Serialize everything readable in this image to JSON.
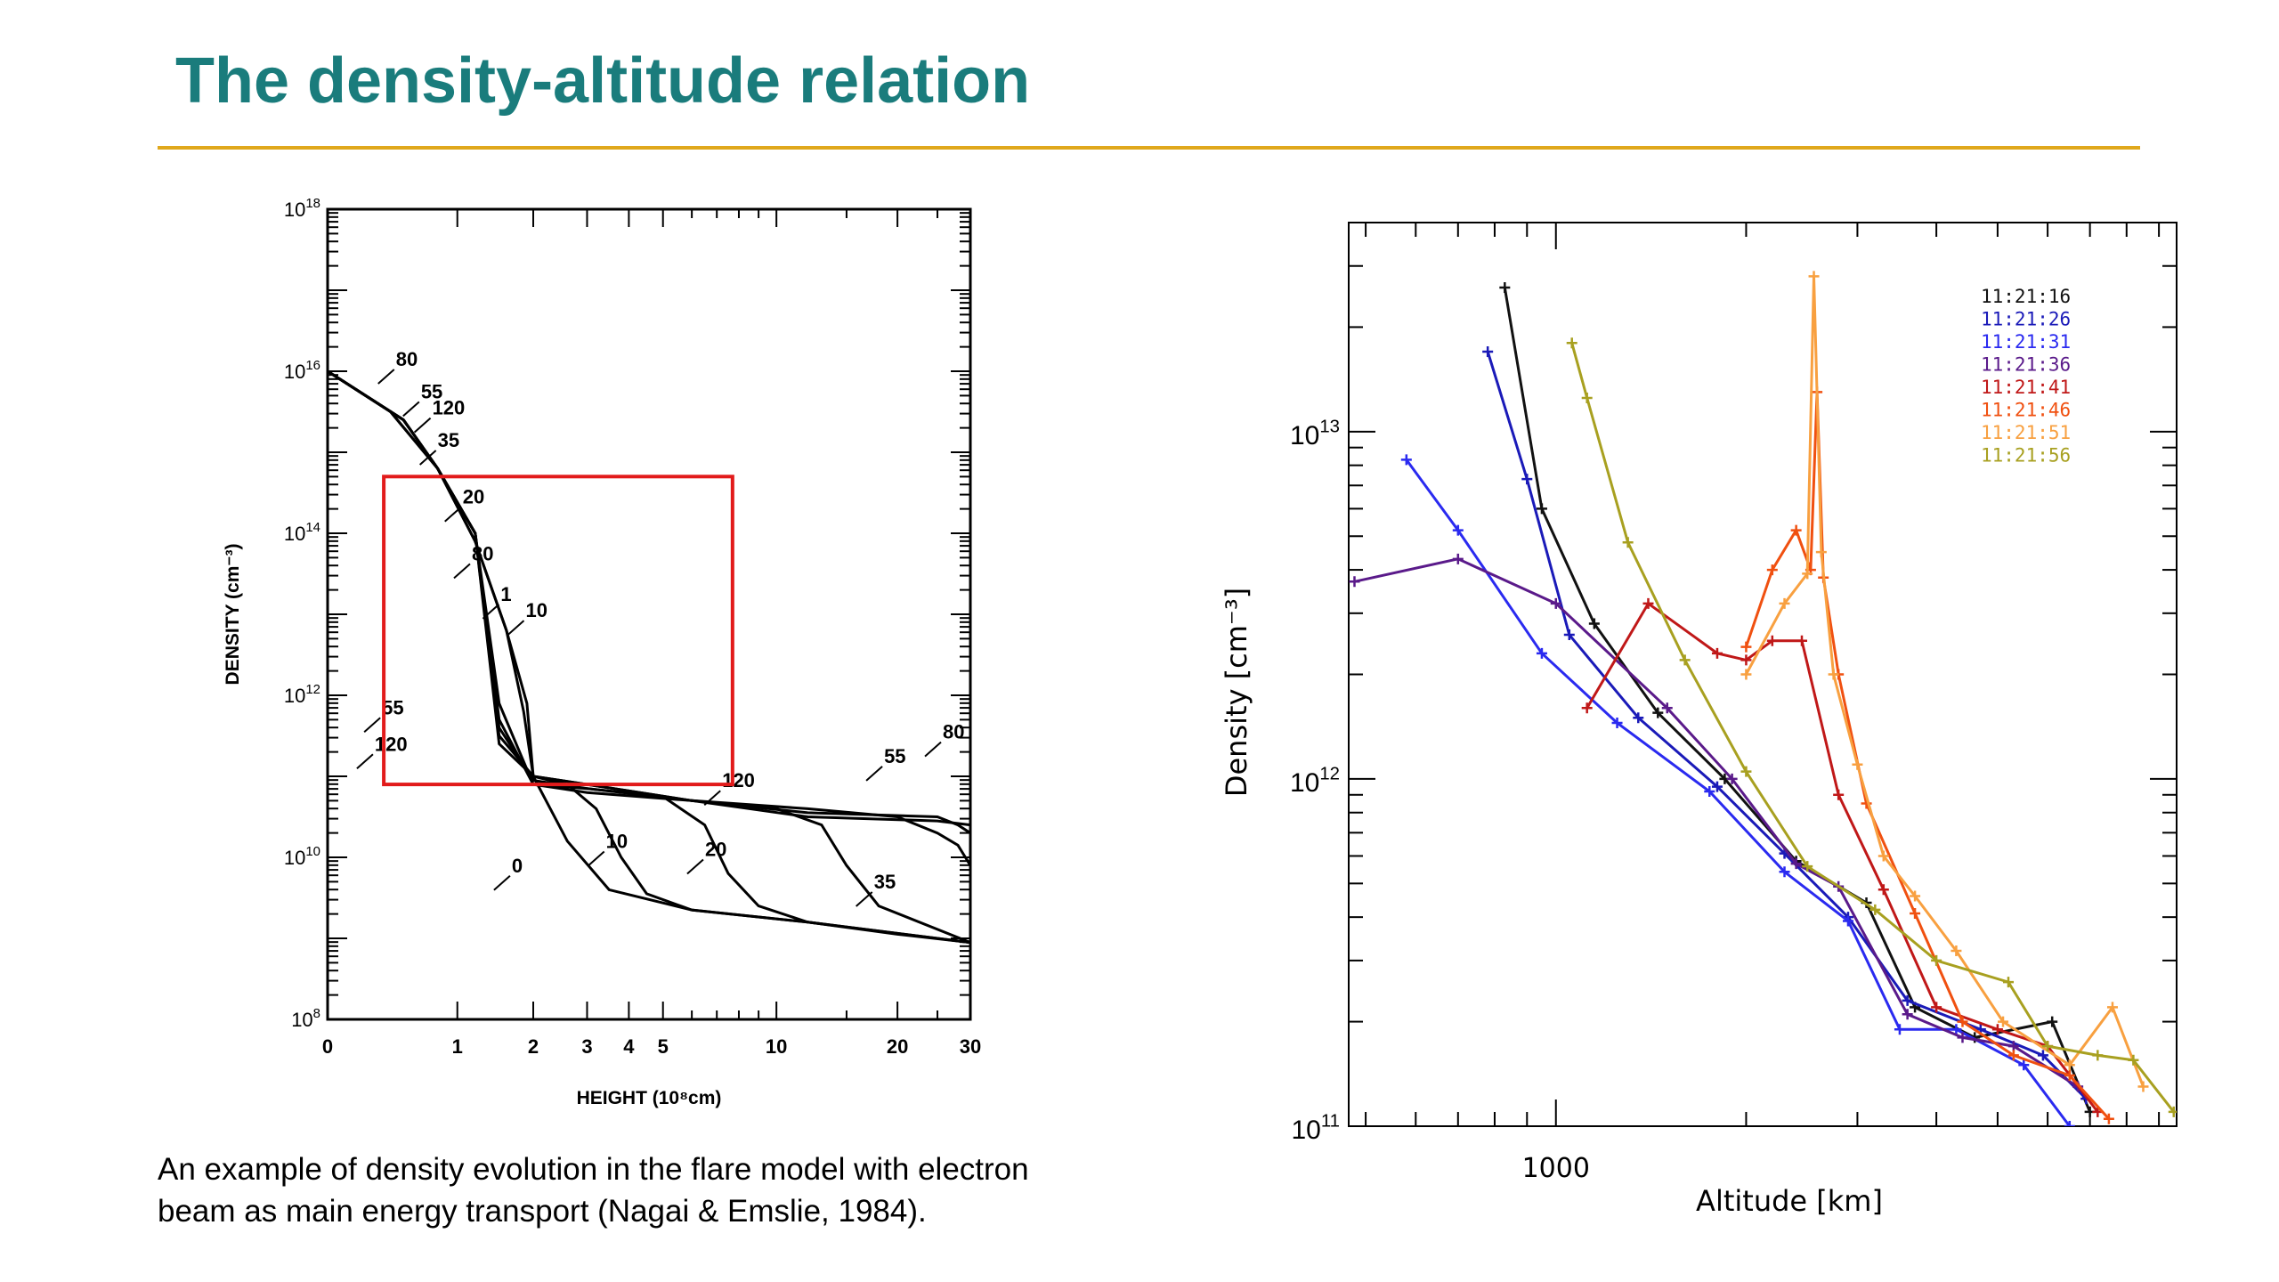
{
  "slide": {
    "title": "The density-altitude relation",
    "caption_lines": [
      "An example of density evolution in the flare model with electron",
      "beam as main energy transport (Nagai & Emslie, 1984)."
    ]
  },
  "colors": {
    "title": "#1a7c7c",
    "rule": "#e0a81c",
    "highlight_box": "#e21b1b"
  },
  "chart_data": [
    {
      "type": "line",
      "xlabel": "HEIGHT (10⁸cm)",
      "ylabel": "DENSITY (cm⁻³)",
      "x_scale": "log(1+x)",
      "y_scale": "log",
      "xlim": [
        0,
        30
      ],
      "ylim": [
        100000000.0,
        1e+18
      ],
      "x_ticks": [
        {
          "value": 0,
          "label": "0"
        },
        {
          "value": 1,
          "label": "1"
        },
        {
          "value": 2,
          "label": "2"
        },
        {
          "value": 3,
          "label": "3"
        },
        {
          "value": 4,
          "label": "4"
        },
        {
          "value": 5,
          "label": "5"
        },
        {
          "value": 10,
          "label": "10"
        },
        {
          "value": 20,
          "label": "20"
        },
        {
          "value": 30,
          "label": "30"
        }
      ],
      "y_ticks": [
        {
          "exp": 8,
          "base": "10",
          "sup": "8"
        },
        {
          "exp": 10,
          "base": "10",
          "sup": "10"
        },
        {
          "exp": 12,
          "base": "10",
          "sup": "12"
        },
        {
          "exp": 14,
          "base": "10",
          "sup": "14"
        },
        {
          "exp": 16,
          "base": "10",
          "sup": "16"
        },
        {
          "exp": 18,
          "base": "10",
          "sup": "18"
        }
      ],
      "series": [
        {
          "label": "0",
          "x": [
            0,
            0.4,
            0.8,
            1.2,
            1.6,
            1.85,
            2.0,
            2.6,
            3.5,
            6,
            12,
            20,
            30
          ],
          "logy": [
            16.0,
            15.5,
            14.8,
            13.9,
            12.8,
            11.8,
            11.0,
            10.2,
            9.6,
            9.35,
            9.2,
            9.05,
            8.95
          ]
        },
        {
          "label": "10",
          "x": [
            0,
            0.4,
            0.8,
            1.2,
            1.6,
            1.9,
            2.0,
            2.6,
            3.2,
            3.8,
            4.5,
            6,
            12,
            30
          ],
          "logy": [
            16.0,
            15.5,
            14.8,
            13.9,
            12.8,
            11.9,
            11.0,
            10.9,
            10.6,
            10.0,
            9.55,
            9.35,
            9.2,
            8.95
          ]
        },
        {
          "label": "20",
          "x": [
            0,
            0.5,
            0.8,
            1.2,
            1.5,
            2.0,
            3.0,
            5.0,
            6.5,
            7.5,
            9,
            12,
            30
          ],
          "logy": [
            16.0,
            15.4,
            14.8,
            14.0,
            11.9,
            10.9,
            10.85,
            10.75,
            10.4,
            9.8,
            9.4,
            9.2,
            8.95
          ]
        },
        {
          "label": "35",
          "x": [
            0,
            0.5,
            0.8,
            1.2,
            1.5,
            2.0,
            3.0,
            6,
            10,
            13,
            15,
            18,
            30
          ],
          "logy": [
            16.0,
            15.4,
            14.8,
            14.0,
            11.7,
            10.9,
            10.8,
            10.7,
            10.6,
            10.4,
            9.9,
            9.4,
            8.95
          ]
        },
        {
          "label": "55",
          "x": [
            0,
            0.5,
            0.8,
            1.2,
            1.5,
            2.0,
            3.0,
            6,
            12,
            20,
            25,
            28,
            30
          ],
          "logy": [
            16.0,
            15.4,
            14.8,
            14.0,
            11.6,
            10.95,
            10.85,
            10.7,
            10.6,
            10.5,
            10.3,
            10.15,
            9.9
          ]
        },
        {
          "label": "80",
          "x": [
            0,
            0.5,
            0.8,
            1.2,
            1.5,
            2.0,
            3.0,
            6,
            12,
            25,
            28,
            30
          ],
          "logy": [
            16.0,
            15.4,
            14.8,
            14.0,
            11.5,
            11.0,
            10.9,
            10.7,
            10.55,
            10.5,
            10.4,
            10.3
          ]
        },
        {
          "label": "120",
          "x": [
            0,
            0.5,
            0.8,
            1.2,
            1.5,
            2.0,
            3.0,
            6,
            12,
            25,
            30
          ],
          "logy": [
            16.0,
            15.4,
            14.8,
            14.0,
            11.4,
            11.0,
            10.9,
            10.7,
            10.5,
            10.45,
            10.4
          ]
        }
      ],
      "annotations": [
        {
          "text": "80",
          "x": 0.4,
          "logy": 16.0
        },
        {
          "text": "55",
          "x": 0.6,
          "logy": 15.6
        },
        {
          "text": "120",
          "x": 0.7,
          "logy": 15.4
        },
        {
          "text": "35",
          "x": 0.75,
          "logy": 15.0
        },
        {
          "text": "20",
          "x": 1.0,
          "logy": 14.3
        },
        {
          "text": "80",
          "x": 1.1,
          "logy": 13.6
        },
        {
          "text": "1",
          "x": 1.45,
          "logy": 13.1
        },
        {
          "text": "10",
          "x": 1.8,
          "logy": 12.9
        },
        {
          "text": "55",
          "x": 0.3,
          "logy": 11.7
        },
        {
          "text": "120",
          "x": 0.25,
          "logy": 11.25
        },
        {
          "text": "80",
          "x": 25,
          "logy": 11.4
        },
        {
          "text": "55",
          "x": 18,
          "logy": 11.1
        },
        {
          "text": "120",
          "x": 7,
          "logy": 10.8
        },
        {
          "text": "10",
          "x": 3.3,
          "logy": 10.05
        },
        {
          "text": "20",
          "x": 6.3,
          "logy": 9.95
        },
        {
          "text": "35",
          "x": 17,
          "logy": 9.55
        },
        {
          "text": "0",
          "x": 1.6,
          "logy": 9.75
        }
      ],
      "highlight_box": {
        "x": [
          0.35,
          7.7
        ],
        "logy": [
          10.9,
          14.7
        ]
      }
    },
    {
      "type": "line",
      "xlabel": "Altitude [km]",
      "ylabel": "Density [cm⁻³]",
      "x_scale": "log",
      "y_scale": "log",
      "xlim": [
        470,
        9600
      ],
      "ylim": [
        100000000000.0,
        40000000000000.0
      ],
      "x_ticks": [
        {
          "value": 1000,
          "label": "1000"
        }
      ],
      "y_ticks": [
        {
          "value": 100000000000.0,
          "base": "10",
          "sup": "11"
        },
        {
          "value": 1000000000000.0,
          "base": "10",
          "sup": "12"
        },
        {
          "value": 10000000000000.0,
          "base": "10",
          "sup": "13"
        }
      ],
      "legend_position": "top-right",
      "series": [
        {
          "name": "11:21:16",
          "color": "#111111",
          "x": [
            830,
            950,
            1150,
            1450,
            1850,
            2400,
            3100,
            3700,
            4600,
            6100,
            7000
          ],
          "y": [
            26000000000000.0,
            6000000000000.0,
            2800000000000.0,
            1550000000000.0,
            1000000000000.0,
            580000000000.0,
            440000000000.0,
            220000000000.0,
            180000000000.0,
            200000000000.0,
            110000000000.0
          ]
        },
        {
          "name": "11:21:26",
          "color": "#1a1ab8",
          "x": [
            780,
            900,
            1050,
            1350,
            1800,
            2300,
            2900,
            3600,
            4700,
            5900,
            6900
          ],
          "y": [
            17000000000000.0,
            7300000000000.0,
            2600000000000.0,
            1500000000000.0,
            950000000000.0,
            610000000000.0,
            400000000000.0,
            230000000000.0,
            190000000000.0,
            160000000000.0,
            120000000000.0
          ]
        },
        {
          "name": "11:21:31",
          "color": "#2a2af0",
          "x": [
            580,
            700,
            950,
            1250,
            1750,
            2300,
            2900,
            3500,
            4300,
            5500,
            6500
          ],
          "y": [
            8300000000000.0,
            5200000000000.0,
            2300000000000.0,
            1450000000000.0,
            920000000000.0,
            540000000000.0,
            390000000000.0,
            190000000000.0,
            190000000000.0,
            150000000000.0,
            100000000000.0
          ]
        },
        {
          "name": "11:21:36",
          "color": "#5a1a8a",
          "x": [
            480,
            700,
            1000,
            1500,
            1900,
            2400,
            2800,
            3600,
            4400,
            5300,
            6700
          ],
          "y": [
            3700000000000.0,
            4300000000000.0,
            3200000000000.0,
            1600000000000.0,
            1000000000000.0,
            570000000000.0,
            490000000000.0,
            210000000000.0,
            180000000000.0,
            170000000000.0,
            130000000000.0
          ]
        },
        {
          "name": "11:21:41",
          "color": "#c01818",
          "x": [
            1120,
            1400,
            1800,
            2000,
            2200,
            2450,
            2800,
            3300,
            4000,
            5000,
            6000,
            7200
          ],
          "y": [
            1600000000000.0,
            3200000000000.0,
            2300000000000.0,
            2200000000000.0,
            2500000000000.0,
            2500000000000.0,
            900000000000.0,
            480000000000.0,
            220000000000.0,
            190000000000.0,
            170000000000.0,
            110000000000.0
          ]
        },
        {
          "name": "11:21:46",
          "color": "#f05010",
          "x": [
            2000,
            2200,
            2400,
            2530,
            2590,
            2650,
            2800,
            3100,
            3700,
            4400,
            5300,
            6500,
            7500
          ],
          "y": [
            2400000000000.0,
            4000000000000.0,
            5200000000000.0,
            4000000000000.0,
            13000000000000.0,
            3800000000000.0,
            2000000000000.0,
            850000000000.0,
            410000000000.0,
            200000000000.0,
            160000000000.0,
            140000000000.0,
            105000000000.0
          ]
        },
        {
          "name": "11:21:51",
          "color": "#f8a040",
          "x": [
            2000,
            2300,
            2500,
            2560,
            2630,
            2750,
            3000,
            3300,
            3700,
            4300,
            5100,
            6500,
            7600,
            8500
          ],
          "y": [
            2000000000000.0,
            3200000000000.0,
            3900000000000.0,
            28000000000000.0,
            4500000000000.0,
            2000000000000.0,
            1100000000000.0,
            600000000000.0,
            460000000000.0,
            320000000000.0,
            200000000000.0,
            150000000000.0,
            220000000000.0,
            130000000000.0
          ]
        },
        {
          "name": "11:21:56",
          "color": "#a8a020",
          "x": [
            1060,
            1120,
            1300,
            1600,
            2000,
            2500,
            3200,
            4000,
            5200,
            6000,
            7200,
            8200,
            9500
          ],
          "y": [
            18000000000000.0,
            12500000000000.0,
            4800000000000.0,
            2200000000000.0,
            1050000000000.0,
            560000000000.0,
            420000000000.0,
            300000000000.0,
            260000000000.0,
            170000000000.0,
            160000000000.0,
            155000000000.0,
            110000000000.0
          ]
        }
      ]
    }
  ]
}
